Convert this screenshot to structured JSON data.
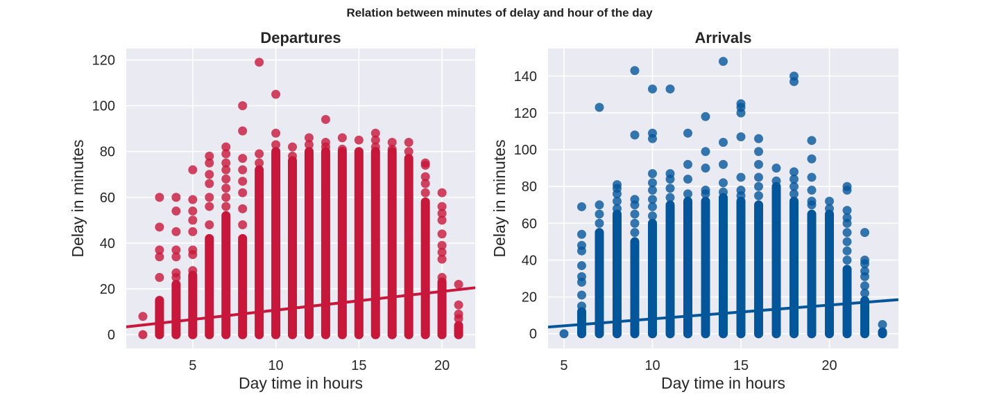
{
  "figure": {
    "suptitle": "Relation between minutes of delay and hour of the day",
    "colors": {
      "background": "#eaeaf2",
      "grid": "#ffffff",
      "departures": "#c8173a",
      "arrivals": "#04569b"
    }
  },
  "chart_data": [
    {
      "type": "scatter",
      "title": "Departures",
      "xlabel": "Day time in hours",
      "ylabel": "Delay in minutes",
      "xlim": [
        1,
        22
      ],
      "ylim": [
        -6,
        125
      ],
      "xticks": [
        5,
        10,
        15,
        20
      ],
      "yticks": [
        0,
        20,
        40,
        60,
        80,
        100,
        120
      ],
      "grid": true,
      "color": "#c8173a",
      "columns": [
        {
          "x": 2,
          "max": 0,
          "extra": [
            8
          ]
        },
        {
          "x": 3,
          "max": 15,
          "extra": [
            25,
            34,
            37,
            47,
            60
          ]
        },
        {
          "x": 4,
          "max": 22,
          "extra": [
            25,
            27,
            34,
            37,
            45,
            54,
            60
          ]
        },
        {
          "x": 5,
          "max": 26,
          "extra": [
            28,
            35,
            37,
            45,
            50,
            54,
            59,
            72
          ]
        },
        {
          "x": 6,
          "max": 42,
          "extra": [
            48,
            56,
            60,
            66,
            70,
            75,
            78
          ]
        },
        {
          "x": 7,
          "max": 52,
          "extra": [
            56,
            60,
            64,
            68,
            72,
            75,
            79,
            82
          ]
        },
        {
          "x": 8,
          "max": 42,
          "extra": [
            48,
            55,
            62,
            67,
            72,
            77,
            89,
            100
          ]
        },
        {
          "x": 9,
          "max": 72,
          "extra": [
            75,
            79,
            119
          ]
        },
        {
          "x": 10,
          "max": 80,
          "extra": [
            83,
            88,
            105
          ]
        },
        {
          "x": 11,
          "max": 76,
          "extra": [
            78,
            82
          ]
        },
        {
          "x": 12,
          "max": 80,
          "extra": [
            83,
            86
          ]
        },
        {
          "x": 13,
          "max": 80,
          "extra": [
            82,
            84,
            94
          ]
        },
        {
          "x": 14,
          "max": 80,
          "extra": [
            81,
            86
          ]
        },
        {
          "x": 15,
          "max": 80,
          "extra": [
            85
          ]
        },
        {
          "x": 16,
          "max": 80,
          "extra": [
            82,
            85,
            88
          ]
        },
        {
          "x": 17,
          "max": 80,
          "extra": [
            81,
            84
          ]
        },
        {
          "x": 18,
          "max": 77,
          "extra": [
            80,
            84
          ]
        },
        {
          "x": 19,
          "max": 58,
          "extra": [
            62,
            66,
            69,
            74,
            75
          ]
        },
        {
          "x": 20,
          "max": 23,
          "extra": [
            25,
            33,
            36,
            39,
            44,
            50,
            53,
            56,
            62
          ]
        },
        {
          "x": 21,
          "max": 4,
          "extra": [
            7,
            9,
            13,
            22
          ]
        }
      ],
      "regression": {
        "x": [
          1,
          22
        ],
        "y": [
          3.4,
          20.5
        ]
      }
    },
    {
      "type": "scatter",
      "title": "Arrivals",
      "xlabel": "Day time in hours",
      "ylabel": "Delay in minutes",
      "xlim": [
        4.1,
        23.9
      ],
      "ylim": [
        -8,
        155
      ],
      "xticks": [
        5,
        10,
        15,
        20
      ],
      "yticks": [
        0,
        20,
        40,
        60,
        80,
        100,
        120,
        140
      ],
      "grid": true,
      "color": "#04569b",
      "columns": [
        {
          "x": 5,
          "max": 0,
          "extra": []
        },
        {
          "x": 6,
          "max": 12,
          "extra": [
            15,
            21,
            28,
            31,
            37,
            45,
            48,
            54,
            69
          ]
        },
        {
          "x": 7,
          "max": 55,
          "extra": [
            60,
            65,
            70,
            123
          ]
        },
        {
          "x": 8,
          "max": 65,
          "extra": [
            68,
            72,
            76,
            79,
            81
          ]
        },
        {
          "x": 9,
          "max": 50,
          "extra": [
            55,
            60,
            65,
            70,
            73,
            108,
            143
          ]
        },
        {
          "x": 10,
          "max": 60,
          "extra": [
            64,
            69,
            73,
            78,
            82,
            87,
            106,
            109,
            133
          ]
        },
        {
          "x": 11,
          "max": 70,
          "extra": [
            74,
            79,
            84,
            87,
            133
          ]
        },
        {
          "x": 12,
          "max": 72,
          "extra": [
            76,
            84,
            92,
            109
          ]
        },
        {
          "x": 13,
          "max": 72,
          "extra": [
            76,
            78,
            90,
            99,
            118
          ]
        },
        {
          "x": 14,
          "max": 74,
          "extra": [
            77,
            82,
            92,
            104,
            148
          ]
        },
        {
          "x": 15,
          "max": 72,
          "extra": [
            75,
            78,
            85,
            107,
            120,
            123,
            125
          ]
        },
        {
          "x": 16,
          "max": 70,
          "extra": [
            75,
            80,
            85,
            92,
            99,
            106
          ]
        },
        {
          "x": 17,
          "max": 80,
          "extra": [
            83,
            90
          ]
        },
        {
          "x": 18,
          "max": 72,
          "extra": [
            76,
            80,
            84,
            88,
            137,
            140
          ]
        },
        {
          "x": 19,
          "max": 65,
          "extra": [
            70,
            72,
            78,
            85,
            95,
            105
          ]
        },
        {
          "x": 20,
          "max": 65,
          "extra": [
            68,
            72
          ]
        },
        {
          "x": 21,
          "max": 35,
          "extra": [
            40,
            45,
            50,
            55,
            60,
            63,
            67,
            78,
            80
          ]
        },
        {
          "x": 22,
          "max": 18,
          "extra": [
            22,
            26,
            31,
            34,
            38,
            40,
            55
          ]
        },
        {
          "x": 23,
          "max": 1,
          "extra": [
            5
          ]
        }
      ],
      "regression": {
        "x": [
          4.1,
          23.9
        ],
        "y": [
          3.6,
          18.5
        ]
      }
    }
  ]
}
